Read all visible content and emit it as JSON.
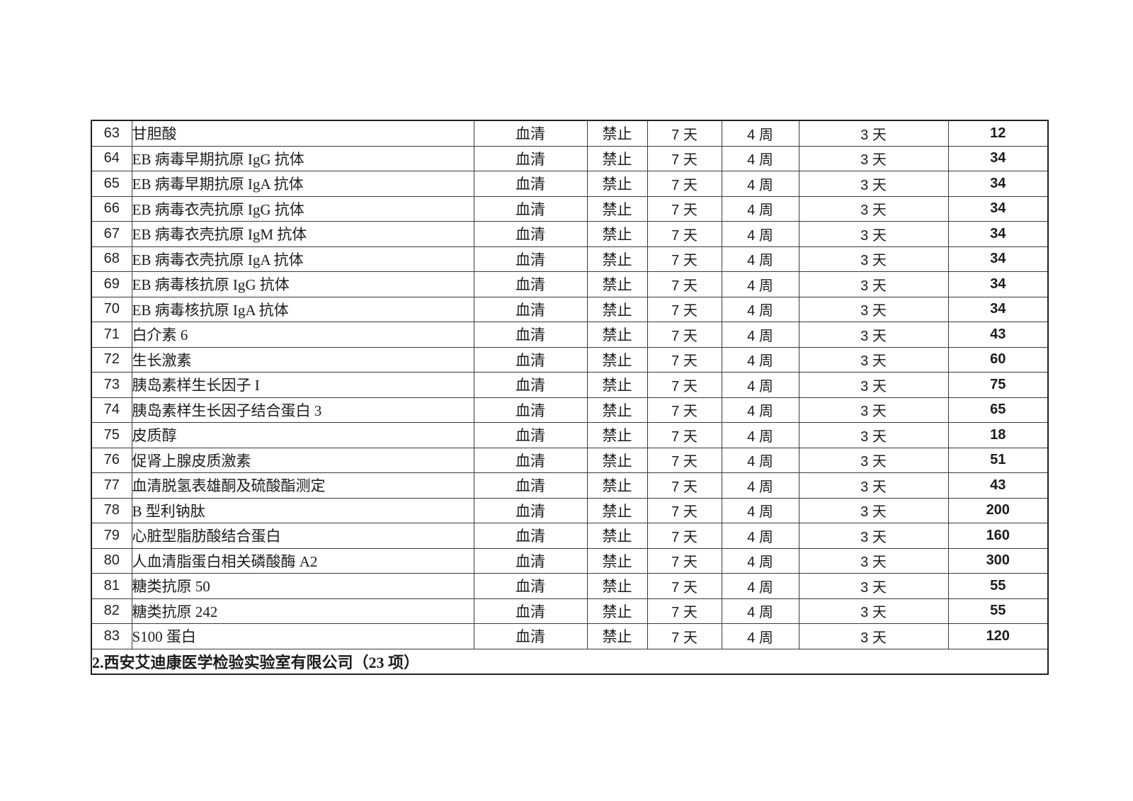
{
  "page": {
    "background": "#ffffff",
    "text_color": "#1c1c1c",
    "border_color": "#3a3a3a"
  },
  "table": {
    "rows": [
      {
        "no": "63",
        "name": "甘胆酸",
        "sample": "血清",
        "ban": "禁止",
        "limit1": "7 天",
        "limit2": "4 周",
        "limit3": "3 天",
        "price": "12"
      },
      {
        "no": "64",
        "name": "EB 病毒早期抗原 IgG 抗体",
        "sample": "血清",
        "ban": "禁止",
        "limit1": "7 天",
        "limit2": "4 周",
        "limit3": "3 天",
        "price": "34"
      },
      {
        "no": "65",
        "name": "EB 病毒早期抗原 IgA 抗体",
        "sample": "血清",
        "ban": "禁止",
        "limit1": "7 天",
        "limit2": "4 周",
        "limit3": "3 天",
        "price": "34"
      },
      {
        "no": "66",
        "name": "EB 病毒衣壳抗原 IgG 抗体",
        "sample": "血清",
        "ban": "禁止",
        "limit1": "7 天",
        "limit2": "4 周",
        "limit3": "3 天",
        "price": "34"
      },
      {
        "no": "67",
        "name": "EB 病毒衣壳抗原 IgM 抗体",
        "sample": "血清",
        "ban": "禁止",
        "limit1": "7 天",
        "limit2": "4 周",
        "limit3": "3 天",
        "price": "34"
      },
      {
        "no": "68",
        "name": "EB 病毒衣壳抗原 IgA 抗体",
        "sample": "血清",
        "ban": "禁止",
        "limit1": "7 天",
        "limit2": "4 周",
        "limit3": "3 天",
        "price": "34"
      },
      {
        "no": "69",
        "name": "EB 病毒核抗原 IgG 抗体",
        "sample": "血清",
        "ban": "禁止",
        "limit1": "7 天",
        "limit2": "4 周",
        "limit3": "3 天",
        "price": "34"
      },
      {
        "no": "70",
        "name": "EB 病毒核抗原 IgA 抗体",
        "sample": "血清",
        "ban": "禁止",
        "limit1": "7 天",
        "limit2": "4 周",
        "limit3": "3 天",
        "price": "34"
      },
      {
        "no": "71",
        "name": "白介素 6",
        "sample": "血清",
        "ban": "禁止",
        "limit1": "7 天",
        "limit2": "4 周",
        "limit3": "3 天",
        "price": "43"
      },
      {
        "no": "72",
        "name": "生长激素",
        "sample": "血清",
        "ban": "禁止",
        "limit1": "7 天",
        "limit2": "4 周",
        "limit3": "3 天",
        "price": "60"
      },
      {
        "no": "73",
        "name": "胰岛素样生长因子 I",
        "sample": "血清",
        "ban": "禁止",
        "limit1": "7 天",
        "limit2": "4 周",
        "limit3": "3 天",
        "price": "75"
      },
      {
        "no": "74",
        "name": "胰岛素样生长因子结合蛋白 3",
        "sample": "血清",
        "ban": "禁止",
        "limit1": "7 天",
        "limit2": "4 周",
        "limit3": "3 天",
        "price": "65"
      },
      {
        "no": "75",
        "name": "皮质醇",
        "sample": "血清",
        "ban": "禁止",
        "limit1": "7 天",
        "limit2": "4 周",
        "limit3": "3 天",
        "price": "18"
      },
      {
        "no": "76",
        "name": "促肾上腺皮质激素",
        "sample": "血清",
        "ban": "禁止",
        "limit1": "7 天",
        "limit2": "4 周",
        "limit3": "3 天",
        "price": "51"
      },
      {
        "no": "77",
        "name": "血清脱氢表雄酮及硫酸酯测定",
        "sample": "血清",
        "ban": "禁止",
        "limit1": "7 天",
        "limit2": "4 周",
        "limit3": "3 天",
        "price": "43"
      },
      {
        "no": "78",
        "name": "B 型利钠肽",
        "sample": "血清",
        "ban": "禁止",
        "limit1": "7 天",
        "limit2": "4 周",
        "limit3": "3 天",
        "price": "200"
      },
      {
        "no": "79",
        "name": "心脏型脂肪酸结合蛋白",
        "sample": "血清",
        "ban": "禁止",
        "limit1": "7 天",
        "limit2": "4 周",
        "limit3": "3 天",
        "price": "160"
      },
      {
        "no": "80",
        "name": "人血清脂蛋白相关磷酸酶 A2",
        "sample": "血清",
        "ban": "禁止",
        "limit1": "7 天",
        "limit2": "4 周",
        "limit3": "3 天",
        "price": "300"
      },
      {
        "no": "81",
        "name": "糖类抗原 50",
        "sample": "血清",
        "ban": "禁止",
        "limit1": "7 天",
        "limit2": "4 周",
        "limit3": "3 天",
        "price": "55"
      },
      {
        "no": "82",
        "name": "糖类抗原 242",
        "sample": "血清",
        "ban": "禁止",
        "limit1": "7 天",
        "limit2": "4 周",
        "limit3": "3 天",
        "price": "55"
      },
      {
        "no": "83",
        "name": "S100 蛋白",
        "sample": "血清",
        "ban": "禁止",
        "limit1": "7 天",
        "limit2": "4 周",
        "limit3": "3 天",
        "price": "120"
      }
    ],
    "footer": "2.西安艾迪康医学检验实验室有限公司（23 项）"
  }
}
